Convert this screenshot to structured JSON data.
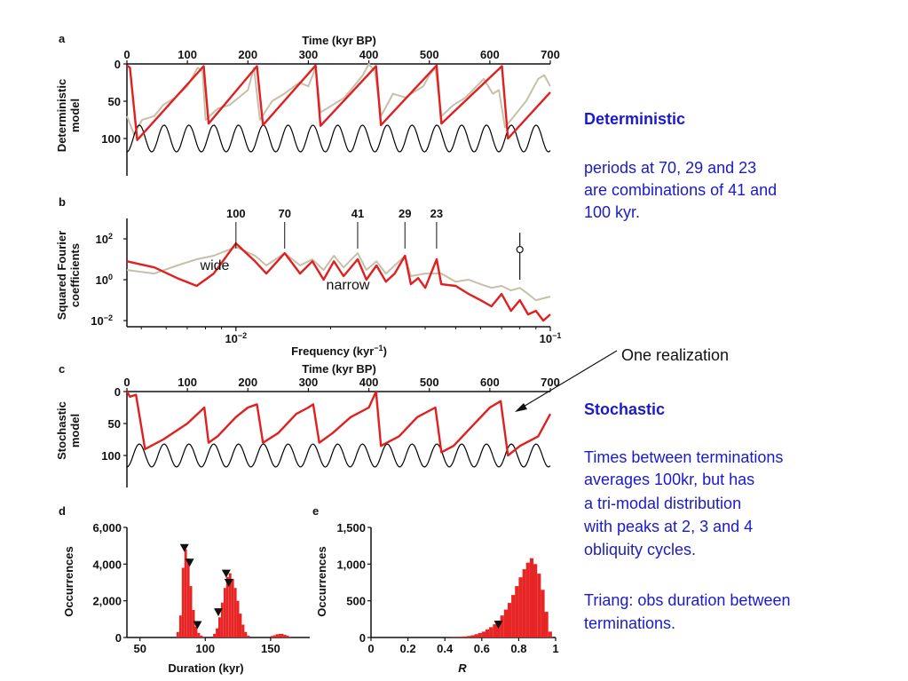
{
  "panel_letters": {
    "a": "a",
    "b": "b",
    "c": "c",
    "d": "d",
    "e": "e"
  },
  "side_text": {
    "det_head": "Deterministic",
    "det_lines": [
      "periods at 70, 29 and 23",
      "are combinations of 41 and",
      "100 kyr."
    ],
    "callout": "One realization",
    "sto_head": "Stochastic",
    "sto_lines": [
      "Times between terminations",
      "averages 100kr, but has",
      "a tri-modal distribution",
      "with peaks at 2, 3 and 4",
      "obliquity cycles."
    ],
    "triang_lines": [
      "Triang: obs duration between",
      "terminations."
    ]
  },
  "chart_data": [
    {
      "id": "a",
      "type": "line",
      "xlabel": "Time (kyr BP)",
      "ylabel_lines": [
        "Deterministic",
        "model"
      ],
      "xlim": [
        0,
        700
      ],
      "ylim": [
        0,
        150
      ],
      "y_inverted": true,
      "x_ticks": [
        0,
        100,
        200,
        300,
        400,
        500,
        600,
        700
      ],
      "y_ticks": [
        0,
        50,
        100
      ],
      "series": [
        {
          "color": "#e02020",
          "x": [
            0,
            5,
            17,
            127,
            135,
            215,
            225,
            312,
            320,
            412,
            420,
            512,
            520,
            620,
            630,
            700
          ],
          "y": [
            2,
            5,
            102,
            3,
            80,
            3,
            82,
            2,
            83,
            3,
            82,
            2,
            80,
            3,
            100,
            38
          ]
        },
        {
          "color": "#c8bfa8",
          "x": [
            0,
            12,
            25,
            45,
            60,
            80,
            100,
            117,
            125,
            130,
            150,
            170,
            200,
            210,
            220,
            240,
            260,
            285,
            300,
            312,
            320,
            340,
            360,
            390,
            400,
            410,
            420,
            440,
            460,
            490,
            500,
            510,
            520,
            540,
            560,
            590,
            605,
            615,
            625,
            640,
            660,
            680,
            690,
            700
          ],
          "y": [
            70,
            95,
            75,
            70,
            55,
            45,
            30,
            5,
            10,
            75,
            60,
            55,
            35,
            5,
            75,
            50,
            40,
            25,
            30,
            5,
            65,
            55,
            45,
            15,
            0,
            10,
            70,
            40,
            45,
            30,
            15,
            5,
            70,
            55,
            45,
            20,
            40,
            35,
            85,
            70,
            50,
            20,
            15,
            30
          ]
        },
        {
          "color": "#000000",
          "kind": "sinusoid",
          "period_kyr": 41,
          "mean": 100,
          "amplitude": 18
        }
      ]
    },
    {
      "id": "b",
      "type": "line",
      "xlabel": "Frequency (kyr-1)",
      "ylabel_lines": [
        "Squared Fourier",
        "coefficients"
      ],
      "x_scale": "log",
      "y_scale": "log",
      "xlim": [
        0.0045,
        0.1
      ],
      "ylim": [
        0.005,
        1000
      ],
      "x_ticks": [
        "10",
        "10"
      ],
      "x_tick_exps": [
        "−2",
        "−1"
      ],
      "y_ticks": [
        "10",
        "10",
        "10"
      ],
      "y_tick_exps": [
        "2",
        "0",
        "−2"
      ],
      "peak_labels": [
        "100",
        "70",
        "41",
        "29",
        "23"
      ],
      "peak_freqs": [
        0.01,
        0.01429,
        0.02439,
        0.03448,
        0.04348
      ],
      "annotations": [
        "wide",
        "narrow"
      ],
      "series": [
        {
          "color": "#e02020",
          "x": [
            0.0045,
            0.0055,
            0.0065,
            0.0075,
            0.0085,
            0.01,
            0.0115,
            0.0125,
            0.0143,
            0.016,
            0.0175,
            0.019,
            0.0205,
            0.022,
            0.0244,
            0.026,
            0.028,
            0.03,
            0.032,
            0.0345,
            0.036,
            0.038,
            0.04,
            0.0435,
            0.045,
            0.05,
            0.055,
            0.06,
            0.065,
            0.07,
            0.075,
            0.08,
            0.085,
            0.09,
            0.095,
            0.1
          ],
          "y": [
            8,
            4,
            1.2,
            0.5,
            2,
            60,
            8,
            2,
            20,
            2,
            8,
            1,
            8,
            1.5,
            10,
            1,
            5,
            0.8,
            2,
            15,
            0.6,
            1.2,
            0.4,
            10,
            0.6,
            0.5,
            0.2,
            0.1,
            0.05,
            0.2,
            0.03,
            0.1,
            0.02,
            0.03,
            0.01,
            0.02
          ]
        },
        {
          "color": "#c8bfa8",
          "x": [
            0.0045,
            0.0055,
            0.0065,
            0.0075,
            0.0085,
            0.01,
            0.0115,
            0.0125,
            0.0143,
            0.016,
            0.0175,
            0.019,
            0.0205,
            0.022,
            0.0244,
            0.026,
            0.028,
            0.03,
            0.032,
            0.0345,
            0.036,
            0.04,
            0.045,
            0.05,
            0.055,
            0.06,
            0.065,
            0.07,
            0.075,
            0.08,
            0.085,
            0.09,
            0.1
          ],
          "y": [
            3,
            2,
            5,
            10,
            15,
            40,
            15,
            5,
            20,
            5,
            10,
            3,
            15,
            4,
            20,
            3,
            8,
            2,
            5,
            15,
            1.5,
            2,
            2,
            0.8,
            1,
            0.6,
            0.4,
            0.5,
            0.3,
            0.4,
            0.2,
            0.1,
            0.15
          ]
        }
      ],
      "error_bar": {
        "x": 0.08,
        "y": 30,
        "y_low": 1,
        "y_high": 200
      }
    },
    {
      "id": "c",
      "type": "line",
      "xlabel": "Time (kyr BP)",
      "ylabel_lines": [
        "Stochastic",
        "model"
      ],
      "xlim": [
        0,
        700
      ],
      "ylim": [
        0,
        150
      ],
      "y_inverted": true,
      "x_ticks": [
        0,
        100,
        200,
        300,
        400,
        500,
        600,
        700
      ],
      "y_ticks": [
        0,
        50,
        100
      ],
      "series": [
        {
          "color": "#e02020",
          "x": [
            0,
            5,
            15,
            30,
            60,
            100,
            128,
            135,
            150,
            180,
            200,
            215,
            225,
            250,
            280,
            300,
            308,
            318,
            340,
            370,
            400,
            412,
            420,
            450,
            480,
            510,
            520,
            540,
            570,
            600,
            618,
            630,
            650,
            680,
            700
          ],
          "y": [
            0,
            8,
            5,
            90,
            75,
            50,
            25,
            80,
            70,
            40,
            25,
            20,
            80,
            65,
            35,
            25,
            20,
            80,
            65,
            40,
            25,
            0,
            85,
            70,
            40,
            25,
            95,
            85,
            55,
            25,
            15,
            100,
            85,
            70,
            35
          ]
        },
        {
          "color": "#000000",
          "kind": "sinusoid",
          "period_kyr": 41,
          "mean": 100,
          "amplitude": 18
        }
      ]
    },
    {
      "id": "d",
      "type": "bar",
      "xlabel": "Duration (kyr)",
      "ylabel": "Occurrences",
      "xlim": [
        40,
        180
      ],
      "ylim": [
        0,
        6000
      ],
      "x_ticks": [
        50,
        100,
        150
      ],
      "y_ticks": [
        "0",
        "2,000",
        "4,000",
        "6,000"
      ],
      "bin_width": 2,
      "bins_x": [
        78,
        80,
        82,
        84,
        86,
        88,
        90,
        92,
        94,
        96,
        98,
        106,
        108,
        110,
        112,
        114,
        116,
        118,
        120,
        122,
        124,
        126,
        128,
        130,
        132,
        150,
        152,
        154,
        156,
        158,
        160,
        162,
        164
      ],
      "bins_y": [
        300,
        1200,
        3800,
        4800,
        4300,
        2800,
        1500,
        600,
        250,
        100,
        40,
        200,
        500,
        1100,
        1900,
        2700,
        3300,
        3500,
        3200,
        2700,
        2000,
        1300,
        700,
        300,
        100,
        80,
        120,
        180,
        200,
        200,
        150,
        100,
        50
      ],
      "markers_x": [
        84,
        88,
        94,
        110,
        116,
        118
      ],
      "markers_y": [
        4900,
        4100,
        700,
        1400,
        3500,
        3000
      ]
    },
    {
      "id": "e",
      "type": "bar",
      "xlabel": "R",
      "ylabel": "Occurrences",
      "xlim": [
        0,
        1
      ],
      "ylim": [
        0,
        1500
      ],
      "x_ticks": [
        "0",
        "0.2",
        "0.4",
        "0.6",
        "0.8",
        "1"
      ],
      "y_ticks": [
        "0",
        "500",
        "1,000",
        "1,500"
      ],
      "bin_width": 0.02,
      "bins_x": [
        0.4,
        0.42,
        0.44,
        0.46,
        0.48,
        0.5,
        0.52,
        0.54,
        0.56,
        0.58,
        0.6,
        0.62,
        0.64,
        0.66,
        0.68,
        0.7,
        0.72,
        0.74,
        0.76,
        0.78,
        0.8,
        0.82,
        0.84,
        0.86,
        0.88,
        0.9,
        0.92,
        0.94,
        0.96
      ],
      "bins_y": [
        2,
        3,
        5,
        8,
        10,
        15,
        20,
        30,
        45,
        60,
        80,
        110,
        140,
        180,
        230,
        300,
        380,
        470,
        580,
        700,
        820,
        930,
        1020,
        1080,
        1000,
        870,
        650,
        350,
        80
      ],
      "markers_x": [
        0.69
      ],
      "markers_y": [
        180
      ]
    }
  ]
}
